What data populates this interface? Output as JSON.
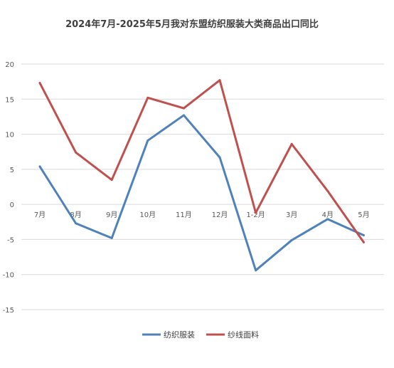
{
  "chart_data": {
    "type": "line",
    "title": "2024年7月-2025年5月我对东盟纺织服装大类商品出口同比",
    "categories": [
      "7月",
      "8月",
      "9月",
      "10月",
      "11月",
      "12月",
      "1-2月",
      "3月",
      "4月",
      "5月"
    ],
    "series": [
      {
        "name": "纺织服装",
        "color": "#4f81bd",
        "values": [
          5.4,
          -2.7,
          -4.8,
          9.1,
          12.7,
          6.7,
          -9.4,
          -5.1,
          -2.1,
          -4.4
        ]
      },
      {
        "name": "纱线面料",
        "color": "#c0504d",
        "values": [
          17.3,
          7.4,
          3.5,
          15.2,
          13.7,
          17.7,
          -1.2,
          8.6,
          1.9,
          -5.4
        ]
      }
    ],
    "ylim": [
      -15,
      20
    ],
    "yticks": [
      20,
      15,
      10,
      5,
      0,
      -5,
      -10,
      -15
    ],
    "grid": true,
    "legend": "bottom",
    "xlabel": "",
    "ylabel": ""
  }
}
